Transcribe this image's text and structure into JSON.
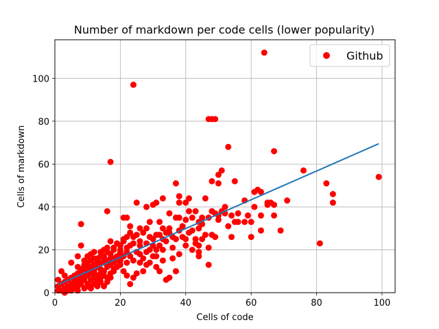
{
  "chart_data": {
    "type": "scatter",
    "title": "Number of markdown per code cells (lower popularity)",
    "xlabel": "Cells of code",
    "ylabel": "Cells of markdown",
    "xlim": [
      0,
      104
    ],
    "ylim": [
      0,
      118
    ],
    "xticks": [
      "0",
      "20",
      "40",
      "60",
      "80",
      "100"
    ],
    "yticks": [
      "0",
      "20",
      "40",
      "60",
      "80",
      "100"
    ],
    "xtick_values": [
      0,
      20,
      40,
      60,
      80,
      100
    ],
    "ytick_values": [
      0,
      20,
      40,
      60,
      80,
      100
    ],
    "grid": true,
    "legend_position": "top-right",
    "colors": {
      "scatter": "#ff0000",
      "fit_line": "#1f77b4"
    },
    "series": [
      {
        "name": "Github",
        "kind": "scatter",
        "points": [
          [
            64,
            112
          ],
          [
            24,
            97
          ],
          [
            17,
            61
          ],
          [
            47,
            81
          ],
          [
            48,
            81
          ],
          [
            49,
            81
          ],
          [
            67,
            66
          ],
          [
            53,
            68
          ],
          [
            76,
            57
          ],
          [
            51,
            57
          ],
          [
            50,
            55
          ],
          [
            50,
            51
          ],
          [
            48,
            52
          ],
          [
            37,
            51
          ],
          [
            62,
            48
          ],
          [
            61,
            47
          ],
          [
            63,
            47
          ],
          [
            66,
            42
          ],
          [
            65,
            42
          ],
          [
            83,
            51
          ],
          [
            85,
            46
          ],
          [
            85,
            42
          ],
          [
            71,
            43
          ],
          [
            58,
            43
          ],
          [
            99,
            54
          ],
          [
            81,
            23
          ],
          [
            55,
            52
          ],
          [
            69,
            29
          ],
          [
            60,
            33
          ],
          [
            60,
            26
          ],
          [
            54,
            26
          ],
          [
            55,
            33
          ],
          [
            53,
            31
          ],
          [
            63,
            36
          ],
          [
            67,
            36
          ],
          [
            63,
            29
          ],
          [
            56,
            33
          ],
          [
            52,
            40
          ],
          [
            52,
            37
          ],
          [
            49,
            37
          ],
          [
            48,
            38
          ],
          [
            47,
            35
          ],
          [
            46,
            44
          ],
          [
            41,
            44
          ],
          [
            38,
            45
          ],
          [
            38,
            42
          ],
          [
            40,
            42
          ],
          [
            33,
            44
          ],
          [
            28,
            40
          ],
          [
            25,
            42
          ],
          [
            30,
            41
          ],
          [
            31,
            42
          ],
          [
            35,
            37
          ],
          [
            37,
            35
          ],
          [
            38,
            35
          ],
          [
            40,
            34
          ],
          [
            42,
            35
          ],
          [
            45,
            35
          ],
          [
            44,
            30
          ],
          [
            45,
            32
          ],
          [
            41,
            38
          ],
          [
            43,
            38
          ],
          [
            44,
            33
          ],
          [
            49,
            26
          ],
          [
            50,
            36
          ],
          [
            47,
            21
          ],
          [
            47,
            13
          ],
          [
            48,
            27
          ],
          [
            44,
            22
          ],
          [
            44,
            19
          ],
          [
            44,
            17
          ],
          [
            45,
            25
          ],
          [
            41,
            28
          ],
          [
            40,
            25
          ],
          [
            43,
            23
          ],
          [
            42,
            29
          ],
          [
            38,
            29
          ],
          [
            37,
            25
          ],
          [
            36,
            26
          ],
          [
            39,
            31
          ],
          [
            39,
            26
          ],
          [
            35,
            28
          ],
          [
            34,
            24
          ],
          [
            33,
            30
          ],
          [
            32,
            33
          ],
          [
            33,
            25
          ],
          [
            31,
            27
          ],
          [
            32,
            22
          ],
          [
            31,
            20
          ],
          [
            31,
            17
          ],
          [
            30,
            22
          ],
          [
            29,
            33
          ],
          [
            29,
            26
          ],
          [
            28,
            23
          ],
          [
            28,
            30
          ],
          [
            27,
            28
          ],
          [
            26,
            30
          ],
          [
            25,
            27
          ],
          [
            26,
            22
          ],
          [
            26,
            24
          ],
          [
            24,
            26
          ],
          [
            24,
            23
          ],
          [
            23,
            28
          ],
          [
            23,
            22
          ],
          [
            23,
            17
          ],
          [
            22,
            26
          ],
          [
            22,
            21
          ],
          [
            21,
            25
          ],
          [
            21,
            24
          ],
          [
            20,
            22
          ],
          [
            20,
            20
          ],
          [
            20,
            19
          ],
          [
            19,
            17
          ],
          [
            20,
            15
          ],
          [
            22,
            35
          ],
          [
            21,
            35
          ],
          [
            23,
            31
          ],
          [
            16,
            38
          ],
          [
            17,
            24
          ],
          [
            18,
            21
          ],
          [
            17,
            18
          ],
          [
            16,
            19
          ],
          [
            16,
            21
          ],
          [
            15,
            17
          ],
          [
            15,
            20
          ],
          [
            14,
            19
          ],
          [
            13,
            16
          ],
          [
            14,
            17
          ],
          [
            13,
            14
          ],
          [
            12,
            16
          ],
          [
            12,
            13
          ],
          [
            11,
            15
          ],
          [
            11,
            12
          ],
          [
            10,
            14
          ],
          [
            10,
            12
          ],
          [
            10,
            10
          ],
          [
            9,
            13
          ],
          [
            9,
            11
          ],
          [
            9,
            8
          ],
          [
            8,
            11
          ],
          [
            8,
            10
          ],
          [
            8,
            7
          ],
          [
            8,
            4
          ],
          [
            7,
            9
          ],
          [
            7,
            6
          ],
          [
            7,
            3
          ],
          [
            7,
            1
          ],
          [
            6,
            8
          ],
          [
            6,
            5
          ],
          [
            6,
            2
          ],
          [
            5,
            7
          ],
          [
            5,
            4
          ],
          [
            5,
            1
          ],
          [
            4,
            6
          ],
          [
            4,
            3
          ],
          [
            4,
            1
          ],
          [
            3,
            5
          ],
          [
            3,
            2
          ],
          [
            3,
            0
          ],
          [
            2,
            4
          ],
          [
            2,
            1
          ],
          [
            1,
            6
          ],
          [
            1,
            3
          ],
          [
            1,
            1
          ],
          [
            2,
            10
          ],
          [
            3,
            8
          ],
          [
            5,
            14
          ],
          [
            7,
            17
          ],
          [
            8,
            22
          ],
          [
            8,
            32
          ],
          [
            12,
            9
          ],
          [
            13,
            6
          ],
          [
            14,
            5
          ],
          [
            15,
            3
          ],
          [
            16,
            5
          ],
          [
            17,
            7
          ],
          [
            18,
            10
          ],
          [
            19,
            12
          ],
          [
            20,
            13
          ],
          [
            21,
            10
          ],
          [
            22,
            8
          ],
          [
            22,
            14
          ],
          [
            23,
            4
          ],
          [
            24,
            7
          ],
          [
            25,
            9
          ],
          [
            26,
            14
          ],
          [
            27,
            16
          ],
          [
            27,
            10
          ],
          [
            28,
            13
          ],
          [
            29,
            14
          ],
          [
            30,
            17
          ],
          [
            31,
            12
          ],
          [
            32,
            10
          ],
          [
            33,
            15
          ],
          [
            34,
            6
          ],
          [
            35,
            7
          ],
          [
            36,
            16
          ],
          [
            37,
            10
          ],
          [
            26,
            18
          ],
          [
            24,
            15
          ],
          [
            30,
            25
          ],
          [
            34,
            28
          ],
          [
            35,
            30
          ],
          [
            32,
            27
          ],
          [
            29,
            20
          ],
          [
            25,
            19
          ],
          [
            21,
            17
          ],
          [
            19,
            23
          ],
          [
            18,
            20
          ],
          [
            17,
            16
          ],
          [
            15,
            14
          ],
          [
            14,
            11
          ],
          [
            13,
            12
          ],
          [
            12,
            10
          ],
          [
            11,
            9
          ],
          [
            10,
            8
          ],
          [
            9,
            6
          ],
          [
            8,
            5
          ],
          [
            7,
            4
          ],
          [
            6,
            3
          ],
          [
            5,
            2
          ],
          [
            4,
            2
          ],
          [
            3,
            1
          ],
          [
            10,
            4
          ],
          [
            11,
            6
          ],
          [
            12,
            7
          ],
          [
            13,
            8
          ],
          [
            14,
            9
          ],
          [
            15,
            10
          ],
          [
            16,
            12
          ],
          [
            17,
            13
          ],
          [
            18,
            14
          ],
          [
            19,
            15
          ],
          [
            20,
            16
          ],
          [
            15,
            8
          ],
          [
            14,
            7
          ],
          [
            13,
            5
          ],
          [
            12,
            4
          ],
          [
            11,
            3
          ],
          [
            16,
            7
          ],
          [
            17,
            9
          ],
          [
            18,
            11
          ],
          [
            11,
            2
          ],
          [
            10,
            3
          ],
          [
            9,
            2
          ],
          [
            13,
            3
          ],
          [
            6,
            6
          ],
          [
            7,
            12
          ],
          [
            9,
            15
          ],
          [
            10,
            17
          ],
          [
            11,
            18
          ],
          [
            12,
            19
          ],
          [
            14,
            14
          ],
          [
            15,
            16
          ],
          [
            16,
            15
          ],
          [
            18,
            16
          ],
          [
            20,
            18
          ],
          [
            22,
            19
          ],
          [
            28,
            19
          ],
          [
            33,
            20
          ],
          [
            36,
            21
          ],
          [
            38,
            18
          ],
          [
            40,
            22
          ],
          [
            42,
            20
          ],
          [
            43,
            25
          ],
          [
            46,
            27
          ],
          [
            58,
            33
          ],
          [
            59,
            36
          ],
          [
            61,
            40
          ],
          [
            65,
            41
          ],
          [
            67,
            41
          ],
          [
            54,
            36
          ],
          [
            56,
            37
          ],
          [
            51,
            38
          ],
          [
            50,
            34
          ]
        ]
      },
      {
        "name": "",
        "kind": "line",
        "points": [
          [
            1,
            3.8
          ],
          [
            99,
            69.5
          ]
        ]
      }
    ]
  }
}
